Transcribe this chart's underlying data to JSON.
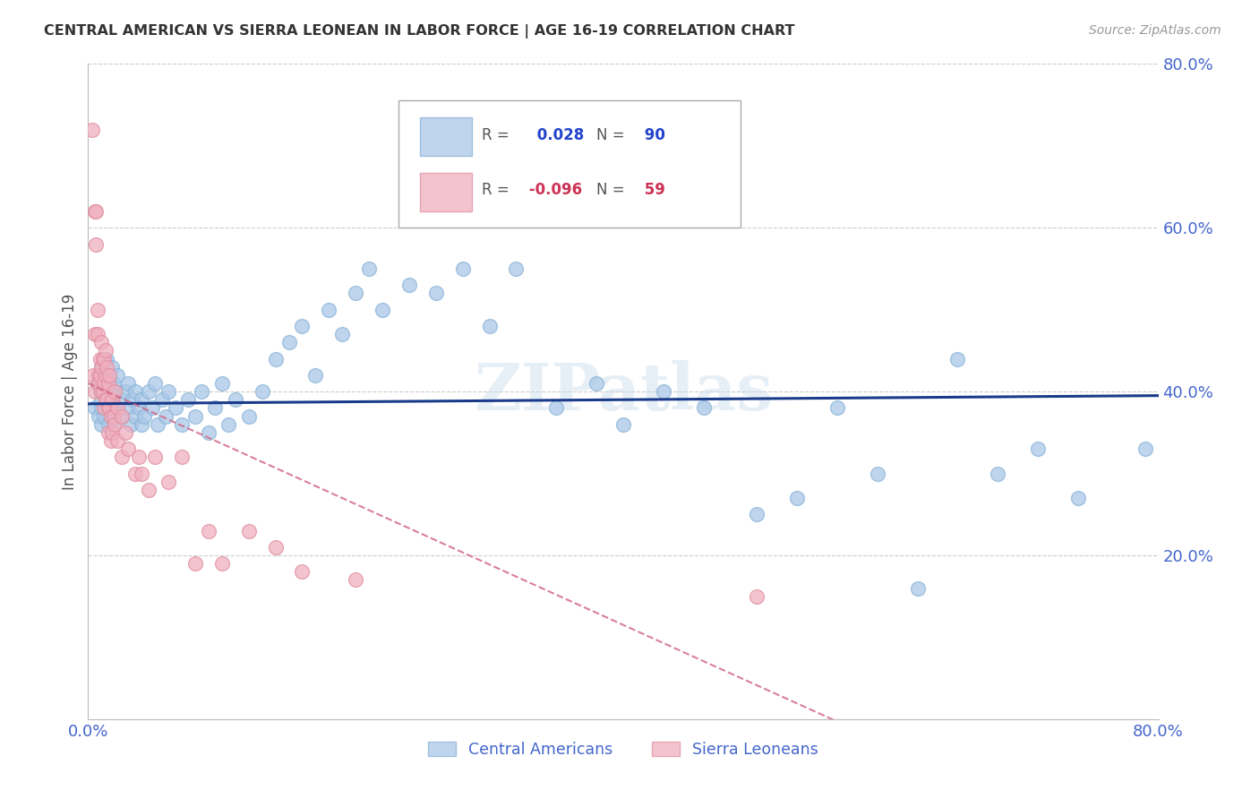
{
  "title": "CENTRAL AMERICAN VS SIERRA LEONEAN IN LABOR FORCE | AGE 16-19 CORRELATION CHART",
  "source": "Source: ZipAtlas.com",
  "ylabel": "In Labor Force | Age 16-19",
  "blue_R": "0.028",
  "blue_N": "90",
  "pink_R": "-0.096",
  "pink_N": "59",
  "legend_label_blue": "Central Americans",
  "legend_label_pink": "Sierra Leoneans",
  "xlim": [
    0.0,
    0.8
  ],
  "ylim": [
    0.0,
    0.8
  ],
  "yticks": [
    0.2,
    0.4,
    0.6,
    0.8
  ],
  "ytick_labels": [
    "20.0%",
    "40.0%",
    "60.0%",
    "80.0%"
  ],
  "background_color": "#ffffff",
  "blue_color": "#aac8e8",
  "blue_edge_color": "#8ab4d8",
  "blue_line_color": "#1a3a8a",
  "pink_color": "#f0b0c0",
  "pink_edge_color": "#e090a0",
  "pink_line_color": "#d06080",
  "grid_color": "#cccccc",
  "title_color": "#333333",
  "axis_label_color": "#4466cc",
  "watermark": "ZIPatlas",
  "blue_scatter_x": [
    0.005,
    0.007,
    0.008,
    0.009,
    0.01,
    0.01,
    0.01,
    0.01,
    0.01,
    0.01,
    0.012,
    0.012,
    0.013,
    0.013,
    0.014,
    0.015,
    0.015,
    0.015,
    0.016,
    0.016,
    0.017,
    0.018,
    0.018,
    0.019,
    0.02,
    0.02,
    0.02,
    0.022,
    0.022,
    0.025,
    0.025,
    0.028,
    0.03,
    0.03,
    0.032,
    0.033,
    0.035,
    0.035,
    0.038,
    0.04,
    0.04,
    0.042,
    0.045,
    0.048,
    0.05,
    0.052,
    0.055,
    0.058,
    0.06,
    0.065,
    0.07,
    0.075,
    0.08,
    0.085,
    0.09,
    0.095,
    0.1,
    0.105,
    0.11,
    0.12,
    0.13,
    0.14,
    0.15,
    0.16,
    0.17,
    0.18,
    0.19,
    0.2,
    0.21,
    0.22,
    0.24,
    0.26,
    0.28,
    0.3,
    0.32,
    0.35,
    0.38,
    0.4,
    0.43,
    0.46,
    0.5,
    0.53,
    0.56,
    0.59,
    0.62,
    0.65,
    0.68,
    0.71,
    0.74,
    0.79
  ],
  "blue_scatter_y": [
    0.38,
    0.41,
    0.37,
    0.4,
    0.42,
    0.38,
    0.36,
    0.41,
    0.43,
    0.39,
    0.4,
    0.37,
    0.38,
    0.42,
    0.44,
    0.39,
    0.36,
    0.41,
    0.38,
    0.4,
    0.37,
    0.43,
    0.39,
    0.41,
    0.38,
    0.4,
    0.36,
    0.38,
    0.42,
    0.39,
    0.37,
    0.4,
    0.38,
    0.41,
    0.36,
    0.39,
    0.37,
    0.4,
    0.38,
    0.36,
    0.39,
    0.37,
    0.4,
    0.38,
    0.41,
    0.36,
    0.39,
    0.37,
    0.4,
    0.38,
    0.36,
    0.39,
    0.37,
    0.4,
    0.35,
    0.38,
    0.41,
    0.36,
    0.39,
    0.37,
    0.4,
    0.44,
    0.46,
    0.48,
    0.42,
    0.5,
    0.47,
    0.52,
    0.55,
    0.5,
    0.53,
    0.52,
    0.55,
    0.48,
    0.55,
    0.38,
    0.41,
    0.36,
    0.4,
    0.38,
    0.25,
    0.27,
    0.38,
    0.3,
    0.16,
    0.44,
    0.3,
    0.33,
    0.27,
    0.33
  ],
  "pink_scatter_x": [
    0.003,
    0.004,
    0.005,
    0.005,
    0.005,
    0.006,
    0.006,
    0.007,
    0.007,
    0.008,
    0.008,
    0.009,
    0.009,
    0.01,
    0.01,
    0.01,
    0.011,
    0.011,
    0.012,
    0.012,
    0.012,
    0.013,
    0.013,
    0.013,
    0.014,
    0.014,
    0.015,
    0.015,
    0.015,
    0.016,
    0.016,
    0.017,
    0.017,
    0.018,
    0.018,
    0.019,
    0.02,
    0.02,
    0.022,
    0.022,
    0.025,
    0.025,
    0.028,
    0.03,
    0.035,
    0.038,
    0.04,
    0.045,
    0.05,
    0.06,
    0.07,
    0.08,
    0.09,
    0.1,
    0.12,
    0.14,
    0.16,
    0.2,
    0.5
  ],
  "pink_scatter_y": [
    0.72,
    0.42,
    0.62,
    0.47,
    0.4,
    0.62,
    0.58,
    0.5,
    0.47,
    0.42,
    0.41,
    0.44,
    0.42,
    0.46,
    0.43,
    0.4,
    0.44,
    0.4,
    0.44,
    0.41,
    0.38,
    0.45,
    0.42,
    0.39,
    0.43,
    0.39,
    0.41,
    0.38,
    0.35,
    0.42,
    0.38,
    0.37,
    0.34,
    0.39,
    0.35,
    0.37,
    0.4,
    0.36,
    0.38,
    0.34,
    0.37,
    0.32,
    0.35,
    0.33,
    0.3,
    0.32,
    0.3,
    0.28,
    0.32,
    0.29,
    0.32,
    0.19,
    0.23,
    0.19,
    0.23,
    0.21,
    0.18,
    0.17,
    0.15
  ]
}
